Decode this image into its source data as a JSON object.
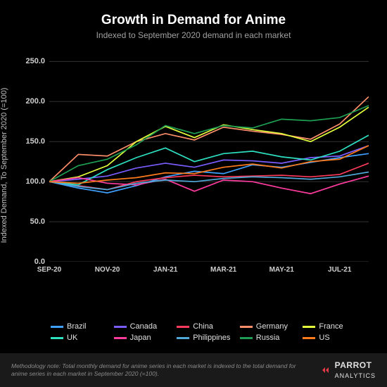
{
  "header": {
    "title": "Growth in Demand for Anime",
    "subtitle": "Indexed to September 2020 demand in each market"
  },
  "chart": {
    "type": "line",
    "ylabel": "Indexed Demand, To September 2020 (=100)",
    "background_color": "#000000",
    "grid_color": "#333333",
    "axis_text_color": "#d0d0d0",
    "label_fontsize": 11,
    "tick_fontsize": 11,
    "line_width": 1.7,
    "ylim": [
      0,
      260
    ],
    "yticks": [
      0,
      50,
      100,
      150,
      200,
      250
    ],
    "ytick_labels": [
      "0.0",
      "50.0",
      "100.0",
      "150.0",
      "200.0",
      "250.0"
    ],
    "x_count": 12,
    "xtick_indices": [
      0,
      2,
      4,
      6,
      8,
      10
    ],
    "xtick_labels": [
      "SEP-20",
      "NOV-20",
      "JAN-21",
      "MAR-21",
      "MAY-21",
      "JUL-21"
    ],
    "series": [
      {
        "name": "Brazil",
        "color": "#3fa0ff",
        "values": [
          100,
          92,
          86,
          95,
          106,
          113,
          110,
          121,
          118,
          124,
          130,
          135
        ]
      },
      {
        "name": "Canada",
        "color": "#7a5cff",
        "values": [
          100,
          103,
          107,
          117,
          123,
          118,
          127,
          126,
          123,
          130,
          132,
          145
        ]
      },
      {
        "name": "China",
        "color": "#ff3b5b",
        "values": [
          100,
          95,
          90,
          100,
          105,
          108,
          106,
          107,
          108,
          106,
          109,
          123
        ]
      },
      {
        "name": "Germany",
        "color": "#ff8f6b",
        "values": [
          100,
          134,
          132,
          150,
          160,
          152,
          168,
          163,
          159,
          153,
          172,
          206
        ]
      },
      {
        "name": "France",
        "color": "#e4ff3b",
        "values": [
          100,
          106,
          120,
          150,
          169,
          155,
          171,
          165,
          160,
          150,
          168,
          193
        ]
      },
      {
        "name": "UK",
        "color": "#2de0c2",
        "values": [
          100,
          96,
          115,
          130,
          142,
          125,
          135,
          138,
          131,
          127,
          138,
          158
        ]
      },
      {
        "name": "Japan",
        "color": "#ff3b9e",
        "values": [
          100,
          105,
          98,
          96,
          103,
          88,
          102,
          100,
          92,
          85,
          97,
          107
        ]
      },
      {
        "name": "Philippines",
        "color": "#4fa8d8",
        "values": [
          100,
          94,
          90,
          98,
          102,
          100,
          104,
          106,
          105,
          103,
          106,
          112
        ]
      },
      {
        "name": "Russia",
        "color": "#1e9e52",
        "values": [
          100,
          120,
          128,
          146,
          170,
          160,
          170,
          167,
          178,
          176,
          180,
          195
        ]
      },
      {
        "name": "US",
        "color": "#ff7a1a",
        "values": [
          100,
          98,
          102,
          105,
          111,
          110,
          118,
          122,
          117,
          125,
          128,
          145
        ]
      }
    ]
  },
  "footer": {
    "methodology": "Methodology note: Total monthly demand for anime series in each market is indexed to the total demand for anime series in each market in September 2020 (=100).",
    "logo_bold": "PARROT",
    "logo_thin": "ANALYTICS",
    "logo_color": "#e63946"
  }
}
